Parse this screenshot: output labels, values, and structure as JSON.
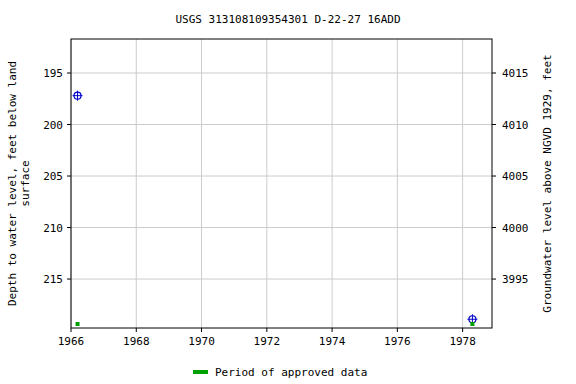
{
  "chart_data": {
    "type": "scatter",
    "title": "USGS 313108109354301 D-22-27 16ADD",
    "ylabel": [
      "Depth to water level, feet below land",
      "surface"
    ],
    "y2label": "Groundwater level above NGVD 1929, feet",
    "x": [
      1966.2,
      1978.3
    ],
    "xlim": [
      1966,
      1978.9
    ],
    "xticks": [
      1966,
      1968,
      1970,
      1972,
      1974,
      1976,
      1978
    ],
    "ylim": [
      191.7,
      219.75
    ],
    "yticks": [
      195,
      200,
      205,
      210,
      215
    ],
    "y2lim": [
      4018.3,
      3990.25
    ],
    "y2ticks": [
      4015,
      4010,
      4005,
      4000,
      3995
    ],
    "grid": true,
    "legend": "bottom",
    "series": [
      {
        "color": "#0000cc",
        "marker": "circle",
        "values": [
          197.2,
          218.9
        ]
      },
      {
        "name": "Period of approved data",
        "type": "period",
        "color": "#00a000",
        "marker": "square",
        "x": [
          1966.2,
          1978.3
        ]
      }
    ]
  }
}
